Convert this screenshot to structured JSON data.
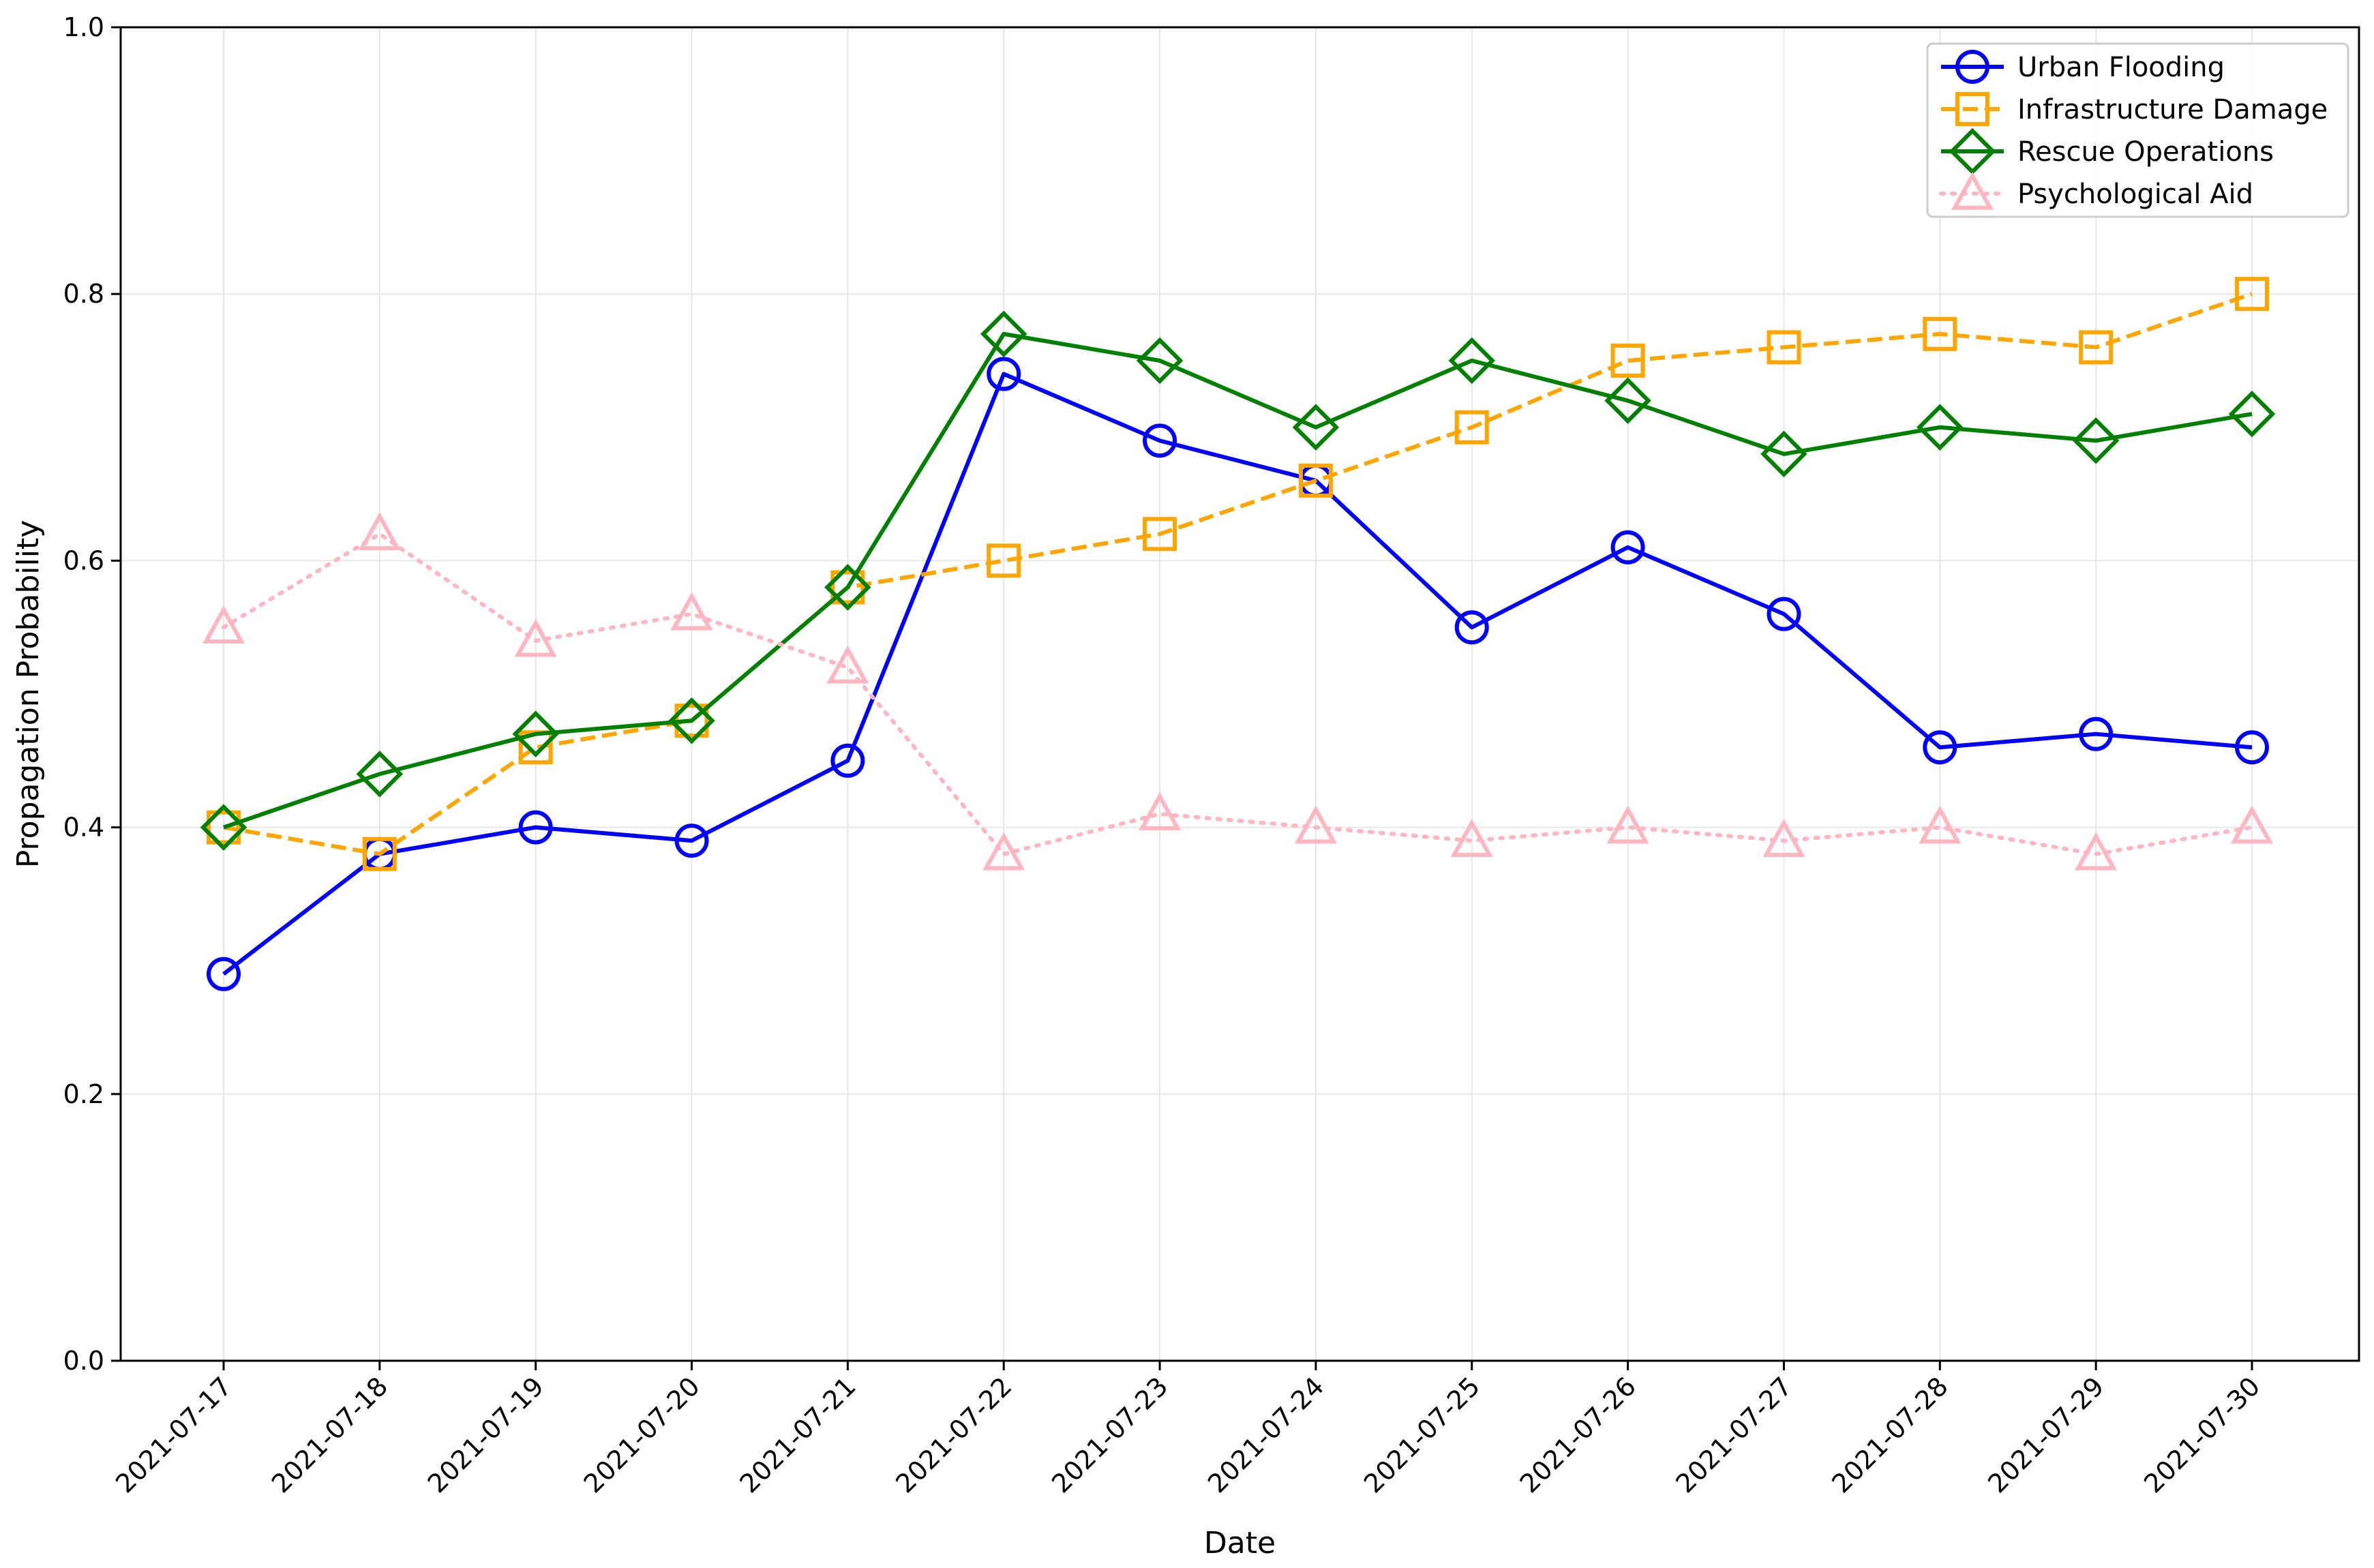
{
  "chart_data": {
    "type": "line",
    "title": "",
    "xlabel": "Date",
    "ylabel": "Propagation Probability",
    "ylim": [
      0,
      1.0
    ],
    "yticks": [
      "0.0",
      "0.2",
      "0.4",
      "0.6",
      "0.8",
      "1.0"
    ],
    "grid": true,
    "legend_position": "top-right",
    "categories": [
      "2021-07-17",
      "2021-07-18",
      "2021-07-19",
      "2021-07-20",
      "2021-07-21",
      "2021-07-22",
      "2021-07-23",
      "2021-07-24",
      "2021-07-25",
      "2021-07-26",
      "2021-07-27",
      "2021-07-28",
      "2021-07-29",
      "2021-07-30"
    ],
    "series": [
      {
        "name": "Urban Flooding",
        "color": "#0000ff",
        "style": "solid",
        "marker": "circle",
        "values": [
          0.29,
          0.38,
          0.4,
          0.39,
          0.45,
          0.74,
          0.69,
          0.66,
          0.55,
          0.61,
          0.56,
          0.46,
          0.47,
          0.46
        ]
      },
      {
        "name": "Infrastructure Damage",
        "color": "#ffa500",
        "style": "dashed",
        "marker": "square",
        "values": [
          0.4,
          0.38,
          0.46,
          0.48,
          0.58,
          0.6,
          0.62,
          0.66,
          0.7,
          0.75,
          0.76,
          0.77,
          0.76,
          0.8
        ]
      },
      {
        "name": "Rescue Operations",
        "color": "#008000",
        "style": "solid",
        "marker": "diamond",
        "values": [
          0.4,
          0.44,
          0.47,
          0.48,
          0.58,
          0.77,
          0.75,
          0.7,
          0.75,
          0.72,
          0.68,
          0.7,
          0.69,
          0.71
        ]
      },
      {
        "name": "Psychological Aid",
        "color": "#ffb6c1",
        "style": "dotted",
        "marker": "triangle",
        "values": [
          0.55,
          0.62,
          0.54,
          0.56,
          0.52,
          0.38,
          0.41,
          0.4,
          0.39,
          0.4,
          0.39,
          0.4,
          0.38,
          0.4
        ]
      }
    ]
  }
}
